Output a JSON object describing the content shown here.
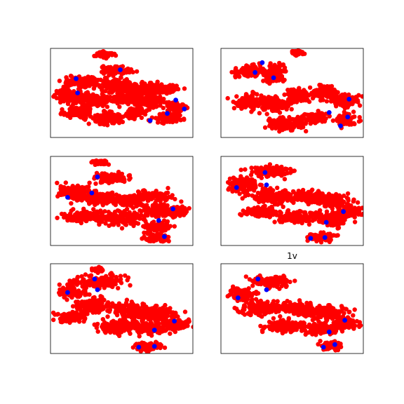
{
  "chart_data": [
    {
      "type": "scatter",
      "title": "",
      "xlim": [
        0,
        1
      ],
      "ylim": [
        0,
        1
      ],
      "axes_ticks": false,
      "series": [
        {
          "color": "#ff0000",
          "clusters": [
            [
              0.38,
              0.93,
              0.05,
              0.03
            ],
            [
              0.47,
              0.76,
              0.09,
              0.04
            ],
            [
              0.22,
              0.62,
              0.12,
              0.06
            ],
            [
              0.46,
              0.58,
              0.12,
              0.07
            ],
            [
              0.65,
              0.54,
              0.1,
              0.06
            ],
            [
              0.8,
              0.55,
              0.08,
              0.05
            ],
            [
              0.12,
              0.47,
              0.08,
              0.06
            ],
            [
              0.3,
              0.42,
              0.12,
              0.07
            ],
            [
              0.52,
              0.44,
              0.1,
              0.06
            ],
            [
              0.72,
              0.4,
              0.1,
              0.06
            ],
            [
              0.2,
              0.28,
              0.1,
              0.05
            ],
            [
              0.4,
              0.22,
              0.09,
              0.06
            ],
            [
              0.6,
              0.28,
              0.08,
              0.05
            ],
            [
              0.82,
              0.22,
              0.08,
              0.05
            ],
            [
              0.88,
              0.34,
              0.06,
              0.04
            ]
          ]
        },
        {
          "color": "#0000ff",
          "values": [
            [
              0.49,
              0.76
            ],
            [
              0.18,
              0.66
            ],
            [
              0.19,
              0.5
            ],
            [
              0.88,
              0.42
            ],
            [
              0.94,
              0.32
            ],
            [
              0.82,
              0.27
            ],
            [
              0.7,
              0.19
            ]
          ]
        }
      ]
    },
    {
      "type": "scatter",
      "title": "",
      "xlim": [
        0,
        1
      ],
      "ylim": [
        0,
        1
      ],
      "axes_ticks": false,
      "series": [
        {
          "color": "#ff0000",
          "clusters": [
            [
              0.54,
              0.95,
              0.04,
              0.02
            ],
            [
              0.2,
              0.74,
              0.1,
              0.05
            ],
            [
              0.38,
              0.72,
              0.07,
              0.08
            ],
            [
              0.2,
              0.4,
              0.1,
              0.07
            ],
            [
              0.38,
              0.38,
              0.1,
              0.08
            ],
            [
              0.55,
              0.48,
              0.08,
              0.06
            ],
            [
              0.73,
              0.5,
              0.1,
              0.07
            ],
            [
              0.88,
              0.42,
              0.08,
              0.06
            ],
            [
              0.45,
              0.15,
              0.12,
              0.06
            ],
            [
              0.65,
              0.22,
              0.08,
              0.05
            ],
            [
              0.88,
              0.2,
              0.07,
              0.06
            ]
          ]
        },
        {
          "color": "#0000ff",
          "values": [
            [
              0.29,
              0.84
            ],
            [
              0.24,
              0.73
            ],
            [
              0.37,
              0.67
            ],
            [
              0.9,
              0.43
            ],
            [
              0.76,
              0.28
            ],
            [
              0.89,
              0.23
            ],
            [
              0.84,
              0.13
            ]
          ]
        }
      ]
    },
    {
      "type": "scatter",
      "title": "",
      "xlim": [
        0,
        1
      ],
      "ylim": [
        0,
        1
      ],
      "axes_ticks": false,
      "series": [
        {
          "color": "#ff0000",
          "clusters": [
            [
              0.35,
              0.93,
              0.04,
              0.02
            ],
            [
              0.43,
              0.76,
              0.1,
              0.05
            ],
            [
              0.16,
              0.6,
              0.1,
              0.07
            ],
            [
              0.35,
              0.53,
              0.12,
              0.06
            ],
            [
              0.55,
              0.5,
              0.1,
              0.06
            ],
            [
              0.72,
              0.56,
              0.12,
              0.05
            ],
            [
              0.25,
              0.32,
              0.14,
              0.06
            ],
            [
              0.5,
              0.3,
              0.12,
              0.07
            ],
            [
              0.75,
              0.4,
              0.1,
              0.07
            ],
            [
              0.88,
              0.38,
              0.08,
              0.05
            ],
            [
              0.75,
              0.2,
              0.08,
              0.05
            ],
            [
              0.75,
              0.08,
              0.08,
              0.04
            ]
          ]
        },
        {
          "color": "#0000ff",
          "values": [
            [
              0.33,
              0.77
            ],
            [
              0.29,
              0.59
            ],
            [
              0.12,
              0.54
            ],
            [
              0.86,
              0.41
            ],
            [
              0.76,
              0.28
            ],
            [
              0.8,
              0.1
            ]
          ]
        }
      ]
    },
    {
      "type": "scatter",
      "title": "",
      "xlim": [
        0,
        1
      ],
      "ylim": [
        0,
        1
      ],
      "axes_ticks": false,
      "series": [
        {
          "color": "#ff0000",
          "clusters": [
            [
              0.35,
              0.83,
              0.14,
              0.06
            ],
            [
              0.15,
              0.68,
              0.09,
              0.08
            ],
            [
              0.35,
              0.55,
              0.12,
              0.07
            ],
            [
              0.6,
              0.55,
              0.14,
              0.06
            ],
            [
              0.8,
              0.5,
              0.1,
              0.06
            ],
            [
              0.28,
              0.38,
              0.12,
              0.06
            ],
            [
              0.55,
              0.32,
              0.14,
              0.06
            ],
            [
              0.8,
              0.3,
              0.1,
              0.07
            ],
            [
              0.9,
              0.38,
              0.08,
              0.05
            ],
            [
              0.7,
              0.1,
              0.08,
              0.04
            ]
          ]
        },
        {
          "color": "#0000ff",
          "values": [
            [
              0.31,
              0.82
            ],
            [
              0.32,
              0.68
            ],
            [
              0.11,
              0.65
            ],
            [
              0.86,
              0.38
            ],
            [
              0.74,
              0.26
            ],
            [
              0.73,
              0.09
            ],
            [
              0.63,
              0.08
            ]
          ]
        }
      ]
    },
    {
      "type": "scatter",
      "title": "",
      "xlim": [
        0,
        1
      ],
      "ylim": [
        0,
        1
      ],
      "axes_ticks": false,
      "series": [
        {
          "color": "#ff0000",
          "clusters": [
            [
              0.33,
              0.93,
              0.03,
              0.02
            ],
            [
              0.35,
              0.8,
              0.14,
              0.06
            ],
            [
              0.15,
              0.7,
              0.08,
              0.07
            ],
            [
              0.3,
              0.53,
              0.12,
              0.08
            ],
            [
              0.15,
              0.4,
              0.1,
              0.05
            ],
            [
              0.58,
              0.48,
              0.12,
              0.08
            ],
            [
              0.75,
              0.45,
              0.12,
              0.07
            ],
            [
              0.45,
              0.3,
              0.12,
              0.06
            ],
            [
              0.7,
              0.28,
              0.12,
              0.06
            ],
            [
              0.88,
              0.33,
              0.08,
              0.05
            ],
            [
              0.68,
              0.08,
              0.08,
              0.04
            ]
          ]
        },
        {
          "color": "#0000ff",
          "values": [
            [
              0.31,
              0.83
            ],
            [
              0.33,
              0.71
            ],
            [
              0.12,
              0.68
            ],
            [
              0.87,
              0.36
            ],
            [
              0.73,
              0.26
            ],
            [
              0.73,
              0.08
            ],
            [
              0.62,
              0.07
            ]
          ]
        }
      ]
    },
    {
      "type": "scatter",
      "title": "1v",
      "xlim": [
        0,
        1
      ],
      "ylim": [
        0,
        1
      ],
      "axes_ticks": false,
      "series": [
        {
          "color": "#ff0000",
          "clusters": [
            [
              0.35,
              0.8,
              0.12,
              0.06
            ],
            [
              0.15,
              0.66,
              0.08,
              0.06
            ],
            [
              0.3,
              0.5,
              0.14,
              0.08
            ],
            [
              0.55,
              0.5,
              0.12,
              0.07
            ],
            [
              0.75,
              0.45,
              0.12,
              0.07
            ],
            [
              0.45,
              0.3,
              0.12,
              0.06
            ],
            [
              0.7,
              0.28,
              0.1,
              0.06
            ],
            [
              0.88,
              0.33,
              0.08,
              0.05
            ],
            [
              0.78,
              0.08,
              0.06,
              0.04
            ]
          ]
        },
        {
          "color": "#0000ff",
          "values": [
            [
              0.26,
              0.83
            ],
            [
              0.32,
              0.71
            ],
            [
              0.12,
              0.62
            ],
            [
              0.87,
              0.37
            ],
            [
              0.76,
              0.24
            ],
            [
              0.8,
              0.1
            ],
            [
              0.72,
              0.07
            ]
          ]
        }
      ]
    }
  ]
}
